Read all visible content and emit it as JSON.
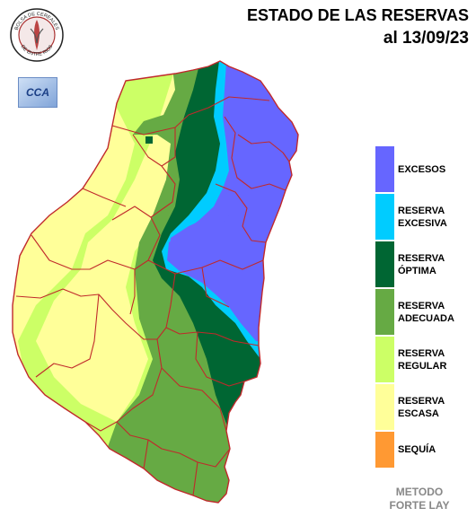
{
  "title": {
    "line1": "ESTADO DE LAS RESERVAS",
    "line2": "al 13/09/23"
  },
  "logos": {
    "bolsa_text_top": "BOLSA DE CEREALES",
    "bolsa_text_bottom": "DE ENTRE RIOS",
    "cca_text": "CCA"
  },
  "legend": {
    "items": [
      {
        "label": "EXCESOS",
        "color": "#6666ff"
      },
      {
        "label": "RESERVA\nEXCESIVA",
        "color": "#00ccff"
      },
      {
        "label": "RESERVA\nÓPTIMA",
        "color": "#006633"
      },
      {
        "label": "RESERVA\nADECUADA",
        "color": "#66aa44"
      },
      {
        "label": "RESERVA\nREGULAR",
        "color": "#ccff66"
      },
      {
        "label": "RESERVA\nESCASA",
        "color": "#ffff99"
      },
      {
        "label": "SEQUÍA",
        "color": "#ff9933"
      }
    ]
  },
  "method": "METODO\nFORTE LAY"
}
